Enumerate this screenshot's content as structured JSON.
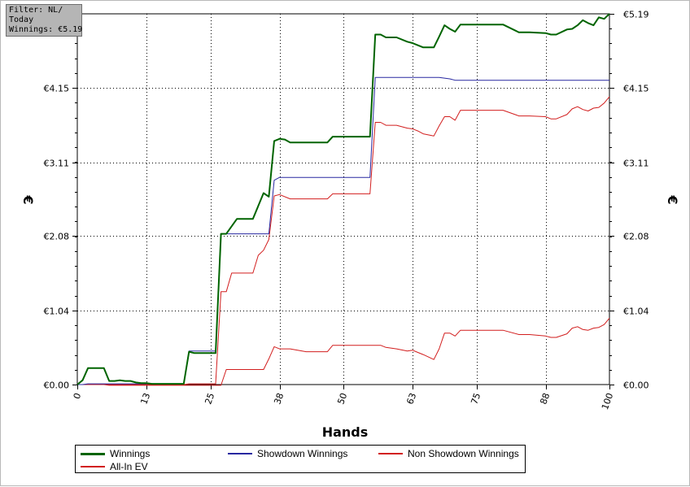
{
  "filter_box": {
    "line1": "Filter: NL/",
    "line2": "Today",
    "line3": "Winnings: €5.19"
  },
  "chart_data": {
    "type": "line",
    "xlabel": "Hands",
    "ylabel": "€",
    "xlim": [
      0,
      100
    ],
    "ylim": [
      0,
      5.19
    ],
    "x_ticks": [
      0,
      13,
      25,
      38,
      50,
      63,
      75,
      88,
      100
    ],
    "x_tick_labels": [
      "0",
      "13",
      "25",
      "38",
      "50",
      "63",
      "75",
      "88",
      "100"
    ],
    "y_ticks": [
      0,
      1.04,
      2.08,
      3.11,
      4.15,
      5.19
    ],
    "y_tick_labels": [
      "€0.00",
      "€1.04",
      "€2.08",
      "€3.11",
      "€4.15",
      "€5.19"
    ],
    "grid": true,
    "legend_position": "bottom",
    "series": [
      {
        "name": "Winnings",
        "color": "#006400",
        "width": 2,
        "x": [
          0,
          1,
          2,
          5,
          6,
          7,
          8,
          9,
          10,
          11,
          12,
          13,
          14,
          15,
          20,
          21,
          22,
          26,
          27,
          28,
          30,
          33,
          34,
          35,
          36,
          37,
          38,
          39,
          40,
          45,
          47,
          48,
          50,
          55,
          56,
          57,
          58,
          60,
          62,
          63,
          64,
          65,
          67,
          68,
          69,
          70,
          71,
          72,
          75,
          80,
          83,
          85,
          88,
          89,
          90,
          92,
          93,
          94,
          95,
          96,
          97,
          98,
          99,
          100
        ],
        "y": [
          0,
          0.06,
          0.23,
          0.23,
          0.05,
          0.05,
          0.06,
          0.05,
          0.05,
          0.03,
          0.02,
          0.02,
          0.01,
          0.01,
          0.01,
          0.46,
          0.44,
          0.44,
          2.11,
          2.11,
          2.32,
          2.32,
          2.5,
          2.68,
          2.63,
          3.41,
          3.44,
          3.43,
          3.39,
          3.39,
          3.39,
          3.47,
          3.47,
          3.47,
          4.9,
          4.9,
          4.86,
          4.86,
          4.8,
          4.78,
          4.75,
          4.72,
          4.72,
          4.87,
          5.03,
          4.98,
          4.94,
          5.04,
          5.04,
          5.04,
          4.93,
          4.93,
          4.92,
          4.9,
          4.9,
          4.97,
          4.98,
          5.03,
          5.1,
          5.06,
          5.03,
          5.14,
          5.12,
          5.19
        ]
      },
      {
        "name": "Showdown Winnings",
        "color": "#2828a0",
        "width": 1,
        "x": [
          0,
          1,
          2,
          5,
          6,
          15,
          20,
          21,
          26,
          27,
          36,
          37,
          38,
          55,
          56,
          68,
          70,
          71,
          100
        ],
        "y": [
          0,
          0,
          0.01,
          0.01,
          0.01,
          0.01,
          0.01,
          0.47,
          0.47,
          2.11,
          2.11,
          2.86,
          2.9,
          2.9,
          4.3,
          4.3,
          4.28,
          4.26,
          4.26
        ]
      },
      {
        "name": "Non Showdown Winnings",
        "color": "#d21e1e",
        "width": 1,
        "x": [
          0,
          5,
          6,
          15,
          20,
          22,
          27,
          28,
          29,
          35,
          36,
          37,
          38,
          40,
          43,
          45,
          47,
          48,
          50,
          55,
          56,
          57,
          58,
          60,
          62,
          63,
          64,
          65,
          67,
          68,
          69,
          70,
          71,
          72,
          75,
          80,
          83,
          85,
          88,
          89,
          90,
          92,
          93,
          94,
          95,
          96,
          97,
          98,
          99,
          100
        ],
        "y": [
          0,
          0,
          -0.01,
          -0.01,
          -0.01,
          -0.01,
          -0.01,
          0.21,
          0.21,
          0.21,
          0.36,
          0.53,
          0.5,
          0.5,
          0.46,
          0.46,
          0.46,
          0.55,
          0.55,
          0.55,
          0.55,
          0.55,
          0.52,
          0.5,
          0.47,
          0.48,
          0.45,
          0.42,
          0.35,
          0.5,
          0.72,
          0.72,
          0.68,
          0.76,
          0.76,
          0.76,
          0.7,
          0.7,
          0.68,
          0.66,
          0.66,
          0.71,
          0.79,
          0.81,
          0.77,
          0.76,
          0.79,
          0.8,
          0.84,
          0.93
        ]
      },
      {
        "name": "All-In EV",
        "color": "#d21e1e",
        "width": 1,
        "x": [
          0,
          20,
          21,
          26,
          27,
          28,
          29,
          30,
          33,
          34,
          35,
          36,
          37,
          38,
          40,
          45,
          47,
          48,
          50,
          55,
          56,
          57,
          58,
          60,
          62,
          63,
          64,
          65,
          67,
          68,
          69,
          70,
          71,
          72,
          75,
          80,
          83,
          85,
          88,
          89,
          90,
          92,
          93,
          94,
          95,
          96,
          97,
          98,
          99,
          100
        ],
        "y": [
          0,
          0,
          0.01,
          0.01,
          1.3,
          1.3,
          1.56,
          1.56,
          1.56,
          1.81,
          1.88,
          2.03,
          2.64,
          2.66,
          2.6,
          2.6,
          2.6,
          2.67,
          2.67,
          2.67,
          3.67,
          3.67,
          3.63,
          3.63,
          3.59,
          3.58,
          3.55,
          3.51,
          3.48,
          3.62,
          3.75,
          3.75,
          3.7,
          3.84,
          3.84,
          3.84,
          3.76,
          3.76,
          3.75,
          3.72,
          3.72,
          3.78,
          3.86,
          3.89,
          3.85,
          3.83,
          3.87,
          3.88,
          3.94,
          4.03
        ]
      }
    ]
  }
}
